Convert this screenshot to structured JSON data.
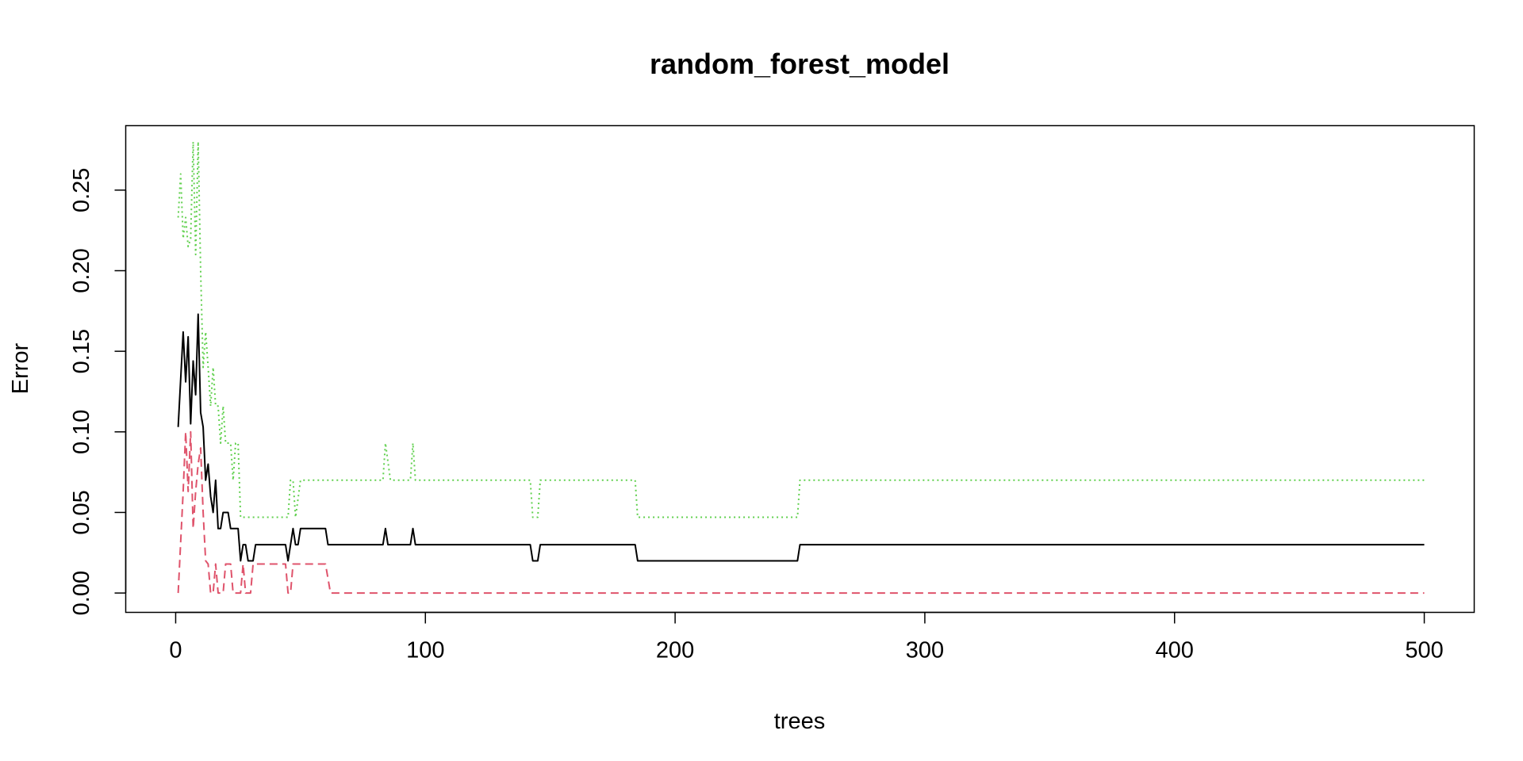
{
  "chart_data": {
    "type": "line",
    "title": "random_forest_model",
    "xlabel": "trees",
    "ylabel": "Error",
    "xlim": [
      -20,
      520
    ],
    "ylim": [
      -0.012,
      0.29
    ],
    "x_ticks": [
      0,
      100,
      200,
      300,
      400,
      500
    ],
    "x_tick_labels": [
      "0",
      "100",
      "200",
      "300",
      "400",
      "500"
    ],
    "y_ticks": [
      0.0,
      0.05,
      0.1,
      0.15,
      0.2,
      0.25
    ],
    "y_tick_labels": [
      "0.00",
      "0.05",
      "0.10",
      "0.15",
      "0.20",
      "0.25"
    ],
    "grid": false,
    "legend": "none",
    "series": [
      {
        "color": "#000000",
        "dash": "solid",
        "points": [
          [
            1,
            0.103
          ],
          [
            3,
            0.162
          ],
          [
            4,
            0.131
          ],
          [
            5,
            0.159
          ],
          [
            6,
            0.105
          ],
          [
            7,
            0.144
          ],
          [
            8,
            0.123
          ],
          [
            9,
            0.173
          ],
          [
            10,
            0.112
          ],
          [
            11,
            0.103
          ],
          [
            12,
            0.07
          ],
          [
            13,
            0.08
          ],
          [
            14,
            0.06
          ],
          [
            15,
            0.05
          ],
          [
            16,
            0.07
          ],
          [
            17,
            0.04
          ],
          [
            18,
            0.04
          ],
          [
            19,
            0.05
          ],
          [
            21,
            0.05
          ],
          [
            22,
            0.04
          ],
          [
            25,
            0.04
          ],
          [
            26,
            0.02
          ],
          [
            27,
            0.03
          ],
          [
            28,
            0.03
          ],
          [
            29,
            0.02
          ],
          [
            31,
            0.02
          ],
          [
            32,
            0.03
          ],
          [
            44,
            0.03
          ],
          [
            45,
            0.02
          ],
          [
            47,
            0.04
          ],
          [
            48,
            0.03
          ],
          [
            49,
            0.03
          ],
          [
            50,
            0.04
          ],
          [
            60,
            0.04
          ],
          [
            61,
            0.03
          ],
          [
            83,
            0.03
          ],
          [
            84,
            0.04
          ],
          [
            85,
            0.03
          ],
          [
            94,
            0.03
          ],
          [
            95,
            0.04
          ],
          [
            96,
            0.03
          ],
          [
            142,
            0.03
          ],
          [
            143,
            0.02
          ],
          [
            145,
            0.02
          ],
          [
            146,
            0.03
          ],
          [
            184,
            0.03
          ],
          [
            185,
            0.02
          ],
          [
            249,
            0.02
          ],
          [
            250,
            0.03
          ],
          [
            500,
            0.03
          ]
        ]
      },
      {
        "color": "#DF536B",
        "dash": "dashed",
        "points": [
          [
            1,
            0.0
          ],
          [
            3,
            0.063
          ],
          [
            4,
            0.1
          ],
          [
            5,
            0.063
          ],
          [
            6,
            0.1
          ],
          [
            7,
            0.04
          ],
          [
            8,
            0.063
          ],
          [
            9,
            0.08
          ],
          [
            10,
            0.09
          ],
          [
            11,
            0.05
          ],
          [
            12,
            0.02
          ],
          [
            13,
            0.018
          ],
          [
            14,
            0.0
          ],
          [
            15,
            0.0
          ],
          [
            16,
            0.018
          ],
          [
            17,
            0.0
          ],
          [
            18,
            0.0
          ],
          [
            19,
            0.0
          ],
          [
            20,
            0.018
          ],
          [
            22,
            0.018
          ],
          [
            23,
            0.0
          ],
          [
            26,
            0.0
          ],
          [
            27,
            0.018
          ],
          [
            28,
            0.0
          ],
          [
            30,
            0.0
          ],
          [
            31,
            0.018
          ],
          [
            44,
            0.018
          ],
          [
            45,
            0.0
          ],
          [
            46,
            0.0
          ],
          [
            47,
            0.018
          ],
          [
            60,
            0.018
          ],
          [
            62,
            0.0
          ],
          [
            500,
            0.0
          ]
        ]
      },
      {
        "color": "#61D04F",
        "dash": "dotted",
        "points": [
          [
            1,
            0.233
          ],
          [
            2,
            0.26
          ],
          [
            3,
            0.22
          ],
          [
            4,
            0.233
          ],
          [
            5,
            0.215
          ],
          [
            6,
            0.22
          ],
          [
            7,
            0.28
          ],
          [
            8,
            0.21
          ],
          [
            9,
            0.28
          ],
          [
            10,
            0.2
          ],
          [
            11,
            0.14
          ],
          [
            12,
            0.162
          ],
          [
            13,
            0.14
          ],
          [
            14,
            0.116
          ],
          [
            15,
            0.14
          ],
          [
            16,
            0.116
          ],
          [
            17,
            0.116
          ],
          [
            18,
            0.093
          ],
          [
            19,
            0.116
          ],
          [
            20,
            0.093
          ],
          [
            22,
            0.093
          ],
          [
            23,
            0.07
          ],
          [
            24,
            0.093
          ],
          [
            25,
            0.093
          ],
          [
            26,
            0.047
          ],
          [
            45,
            0.047
          ],
          [
            46,
            0.07
          ],
          [
            47,
            0.07
          ],
          [
            48,
            0.047
          ],
          [
            50,
            0.07
          ],
          [
            83,
            0.07
          ],
          [
            84,
            0.093
          ],
          [
            86,
            0.07
          ],
          [
            94,
            0.07
          ],
          [
            95,
            0.093
          ],
          [
            96,
            0.07
          ],
          [
            142,
            0.07
          ],
          [
            143,
            0.047
          ],
          [
            145,
            0.047
          ],
          [
            146,
            0.07
          ],
          [
            184,
            0.07
          ],
          [
            185,
            0.047
          ],
          [
            249,
            0.047
          ],
          [
            250,
            0.07
          ],
          [
            500,
            0.07
          ]
        ]
      }
    ]
  }
}
